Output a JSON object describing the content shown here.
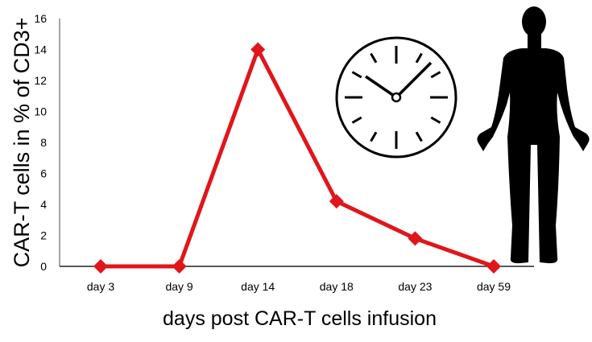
{
  "chart_data": {
    "type": "line",
    "title": "",
    "xlabel": "days post CAR-T cells infusion",
    "ylabel": "CAR-T cells in % of CD3+",
    "categories": [
      "day 3",
      "day 9",
      "day 14",
      "day 18",
      "day 23",
      "day 59"
    ],
    "values": [
      0,
      0,
      14,
      4.2,
      1.8,
      0
    ],
    "ylim": [
      0,
      16
    ],
    "yticks": [
      0,
      2,
      4,
      6,
      8,
      10,
      12,
      14,
      16
    ],
    "grid": false,
    "marker": "diamond",
    "series_color": "#e0161b",
    "decorations": [
      "clock-icon",
      "human-silhouette-icon"
    ]
  }
}
